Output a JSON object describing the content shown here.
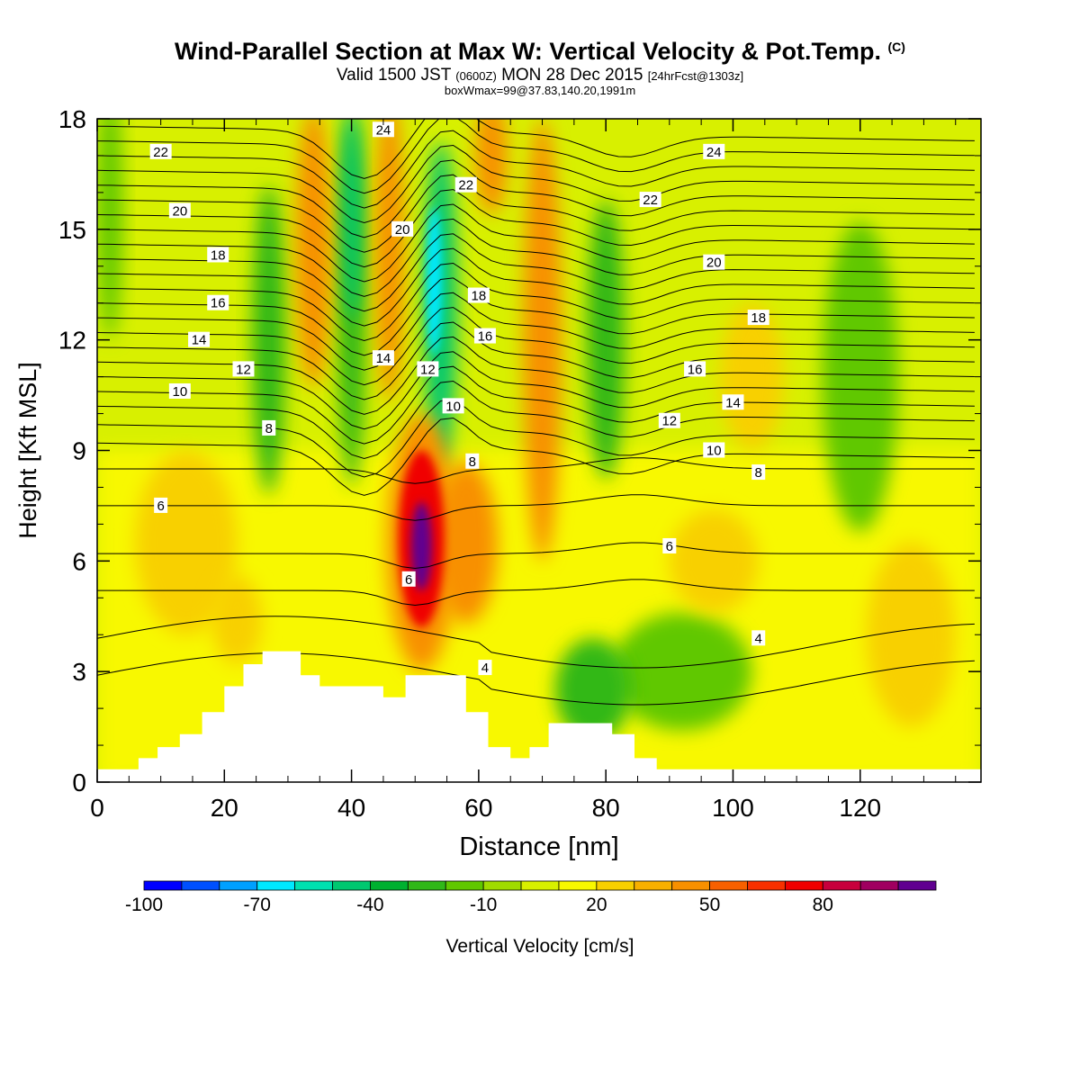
{
  "chart_data": {
    "type": "heatmap",
    "title": "Wind-Parallel Section at Max W: Vertical Velocity & Pot.Temp.",
    "title_mark": "(C)",
    "subtitle": {
      "valid_prefix": "Valid 1500 JST",
      "utc": "(0600Z)",
      "date": "MON 28 Dec 2015",
      "fcst": "[24hrFcst@1303z]"
    },
    "subtitle2": "boxWmax=99@37.83,140.20,1991m",
    "xlabel": "Distance [nm]",
    "ylabel": "Height [Kft MSL]",
    "xlim": [
      0,
      139
    ],
    "ylim": [
      0,
      18
    ],
    "x_ticks": [
      "0",
      "20",
      "40",
      "60",
      "80",
      "100",
      "120"
    ],
    "y_ticks": [
      "0",
      "3",
      "6",
      "9",
      "12",
      "15",
      "18"
    ],
    "colorbar": {
      "label": "Vertical Velocity [cm/s]",
      "tick_labels": [
        "-100",
        "-70",
        "-40",
        "-10",
        "20",
        "50",
        "80"
      ],
      "colors": [
        "#0000ff",
        "#0050ff",
        "#00a0ff",
        "#00e8ff",
        "#00e0b0",
        "#00c870",
        "#00b030",
        "#30b818",
        "#60c800",
        "#a0dc00",
        "#d8f000",
        "#f8f800",
        "#f8d000",
        "#f8b000",
        "#f89000",
        "#f86000",
        "#f83000",
        "#f00000",
        "#c8003c",
        "#a00060",
        "#600090"
      ]
    },
    "velocity_bands": [
      {
        "name": "neg-strong",
        "color": "#00e8ff",
        "centers": [
          [
            53,
            13.5
          ]
        ]
      },
      {
        "name": "neg-mid",
        "color": "#00c870",
        "centers": [
          [
            40,
            15
          ],
          [
            54,
            13
          ]
        ]
      },
      {
        "name": "neg-weak",
        "color": "#30b818",
        "centers": [
          [
            27,
            12
          ],
          [
            80,
            12
          ],
          [
            40,
            13
          ],
          [
            78,
            2.5
          ]
        ]
      },
      {
        "name": "neg-slight",
        "color": "#60c800",
        "centers": [
          [
            120,
            11
          ],
          [
            2,
            16
          ],
          [
            92,
            3
          ],
          [
            130,
            8
          ]
        ]
      },
      {
        "name": "pos-weak",
        "color": "#f8d000",
        "centers": [
          [
            14,
            6.5
          ],
          [
            97,
            6
          ],
          [
            128,
            4
          ],
          [
            103,
            11
          ]
        ]
      },
      {
        "name": "pos-mid",
        "color": "#f89000",
        "centers": [
          [
            33,
            15
          ],
          [
            47,
            15
          ],
          [
            70,
            12
          ],
          [
            58,
            6
          ]
        ]
      },
      {
        "name": "pos-strong",
        "color": "#f00000",
        "centers": [
          [
            51,
            6.5
          ]
        ]
      },
      {
        "name": "pos-max",
        "color": "#600090",
        "centers": [
          [
            51,
            6.3
          ]
        ]
      }
    ],
    "potential_temperature_labels": [
      {
        "text": "22",
        "x": 10,
        "y": 17.1
      },
      {
        "text": "20",
        "x": 13,
        "y": 15.5
      },
      {
        "text": "18",
        "x": 19,
        "y": 14.3
      },
      {
        "text": "16",
        "x": 19,
        "y": 13.0
      },
      {
        "text": "14",
        "x": 16,
        "y": 12.0
      },
      {
        "text": "12",
        "x": 23,
        "y": 11.2
      },
      {
        "text": "10",
        "x": 13,
        "y": 10.6
      },
      {
        "text": "8",
        "x": 27,
        "y": 9.6
      },
      {
        "text": "6",
        "x": 10,
        "y": 7.5
      },
      {
        "text": "24",
        "x": 45,
        "y": 17.7
      },
      {
        "text": "22",
        "x": 58,
        "y": 16.2
      },
      {
        "text": "20",
        "x": 48,
        "y": 15.0
      },
      {
        "text": "18",
        "x": 60,
        "y": 13.2
      },
      {
        "text": "16",
        "x": 61,
        "y": 12.1
      },
      {
        "text": "14",
        "x": 45,
        "y": 11.5
      },
      {
        "text": "12",
        "x": 52,
        "y": 11.2
      },
      {
        "text": "10",
        "x": 56,
        "y": 10.2
      },
      {
        "text": "8",
        "x": 59,
        "y": 8.7
      },
      {
        "text": "6",
        "x": 49,
        "y": 5.5
      },
      {
        "text": "4",
        "x": 61,
        "y": 3.1
      },
      {
        "text": "24",
        "x": 97,
        "y": 17.1
      },
      {
        "text": "22",
        "x": 87,
        "y": 15.8
      },
      {
        "text": "20",
        "x": 97,
        "y": 14.1
      },
      {
        "text": "18",
        "x": 104,
        "y": 12.6
      },
      {
        "text": "16",
        "x": 94,
        "y": 11.2
      },
      {
        "text": "14",
        "x": 100,
        "y": 10.3
      },
      {
        "text": "12",
        "x": 90,
        "y": 9.8
      },
      {
        "text": "10",
        "x": 97,
        "y": 9.0
      },
      {
        "text": "8",
        "x": 104,
        "y": 8.4
      },
      {
        "text": "6",
        "x": 90,
        "y": 6.4
      },
      {
        "text": "4",
        "x": 104,
        "y": 3.9
      }
    ],
    "terrain_height_kft": [
      [
        0,
        0.35
      ],
      [
        6.5,
        0.35
      ],
      [
        6.5,
        0.65
      ],
      [
        9.5,
        0.65
      ],
      [
        9.5,
        0.95
      ],
      [
        13,
        0.95
      ],
      [
        13,
        1.3
      ],
      [
        16.5,
        1.3
      ],
      [
        16.5,
        1.9
      ],
      [
        20,
        1.9
      ],
      [
        20,
        2.6
      ],
      [
        23,
        2.6
      ],
      [
        23,
        3.2
      ],
      [
        26,
        3.2
      ],
      [
        26,
        3.55
      ],
      [
        32,
        3.55
      ],
      [
        32,
        2.9
      ],
      [
        35,
        2.9
      ],
      [
        35,
        2.6
      ],
      [
        45,
        2.6
      ],
      [
        45,
        2.3
      ],
      [
        48.5,
        2.3
      ],
      [
        48.5,
        2.9
      ],
      [
        58,
        2.9
      ],
      [
        58,
        1.9
      ],
      [
        61.5,
        1.9
      ],
      [
        61.5,
        0.95
      ],
      [
        65,
        0.95
      ],
      [
        65,
        0.65
      ],
      [
        68,
        0.65
      ],
      [
        68,
        0.95
      ],
      [
        71,
        0.95
      ],
      [
        71,
        1.6
      ],
      [
        81,
        1.6
      ],
      [
        81,
        1.3
      ],
      [
        84.5,
        1.3
      ],
      [
        84.5,
        0.65
      ],
      [
        88,
        0.65
      ],
      [
        88,
        0.35
      ],
      [
        139,
        0.35
      ]
    ]
  }
}
